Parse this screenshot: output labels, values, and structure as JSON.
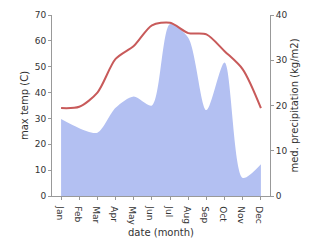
{
  "chart_data": {
    "type": "line",
    "xlabel": "date (month)",
    "ylabel": "max temp (C)",
    "y2label": "med. precipitation (kg/m2)",
    "categories": [
      "Jan",
      "Feb",
      "Mar",
      "Apr",
      "May",
      "Jun",
      "Jul",
      "Aug",
      "Sep",
      "Oct",
      "Nov",
      "Dec"
    ],
    "series": [
      {
        "type": "area",
        "axis": "y2",
        "color": "#b3c0f2",
        "values": [
          17,
          15,
          14,
          19.5,
          22,
          20,
          38,
          35,
          19,
          29.5,
          4,
          7
        ]
      },
      {
        "type": "line",
        "color": "#c85a5a",
        "values": [
          34,
          34.5,
          40,
          53,
          58,
          66,
          67,
          63,
          62.5,
          56,
          49,
          34
        ]
      }
    ],
    "ylim": [
      0,
      70
    ],
    "yticks": [
      0,
      10,
      20,
      30,
      40,
      50,
      60,
      70
    ],
    "y2lim": [
      0,
      40
    ],
    "y2ticks": [
      0,
      10,
      20,
      30,
      40
    ],
    "grid": false
  }
}
